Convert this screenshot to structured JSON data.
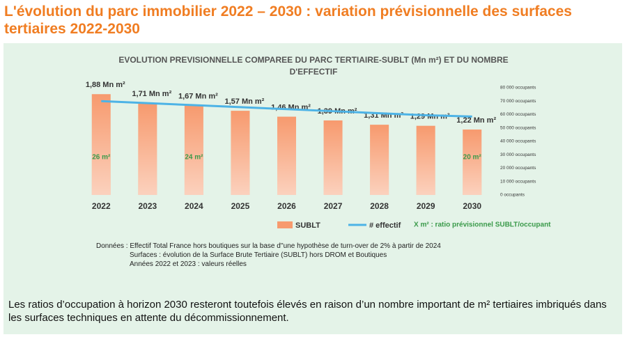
{
  "page_title": "L'évolution du parc immobilier 2022 – 2030 : variation prévisionnelle des surfaces tertiaires 2022-2030",
  "chart_data": {
    "type": "bar",
    "title": "EVOLUTION PREVISIONNELLE COMPAREE DU PARC TERTIAIRE-SUBLT (Mn m²)  ET DU NOMBRE D'EFFECTIF",
    "categories": [
      "2022",
      "2023",
      "2024",
      "2025",
      "2026",
      "2027",
      "2028",
      "2029",
      "2030"
    ],
    "series": [
      {
        "name": "SUBLT",
        "type": "bar",
        "color": "#f79a6e",
        "values": [
          1.88,
          1.71,
          1.67,
          1.57,
          1.46,
          1.39,
          1.31,
          1.29,
          1.22
        ],
        "value_labels": [
          "1,88 Mn m²",
          "1,71 Mn m²",
          "1,67 Mn m²",
          "1,57 Mn m²",
          "1,46 Mn m²",
          "1,39 Mn m²",
          "1,31 Mn m²",
          "1,29 Mn m²",
          "1,22 Mn m²"
        ]
      },
      {
        "name": "# effectif",
        "type": "line",
        "color": "#4db3e6",
        "axis": "y2",
        "values": [
          70000,
          68500,
          67000,
          65500,
          64000,
          62500,
          61000,
          59500,
          58500
        ]
      }
    ],
    "ratio_labels": [
      "26 m²",
      null,
      "24 m²",
      null,
      null,
      null,
      null,
      null,
      "20 m²"
    ],
    "ratio_color": "#3a9a4a",
    "legend_note": "X m² : ratio prévisionnel SUBLT/occupant",
    "ylim": [
      0,
      2
    ],
    "y2lim": [
      0,
      80000
    ],
    "y2ticks": [
      {
        "value": 0,
        "label": "0 occupants"
      },
      {
        "value": 10000,
        "label": "10 000 occupants"
      },
      {
        "value": 20000,
        "label": "20 000 occupants"
      },
      {
        "value": 30000,
        "label": "30 000 occupants"
      },
      {
        "value": 40000,
        "label": "40 000 occupants"
      },
      {
        "value": 50000,
        "label": "50 000 occupants"
      },
      {
        "value": 60000,
        "label": "60 000 occupants"
      },
      {
        "value": 70000,
        "label": "70 000 occupants"
      },
      {
        "value": 80000,
        "label": "80 000 occupants"
      }
    ]
  },
  "notes": [
    "Données : Effectif Total France hors boutiques sur la base d''une hypothèse de  turn-over de 2% à partir de 2024",
    "Surfaces : évolution de la Surface Brute Tertiaire (SUBLT) hors DROM et Boutiques",
    "Années 2022 et 2023 : valeurs réelles"
  ],
  "footer": "Les ratios d’occupation à horizon 2030 resteront toutefois élevés en raison d’un nombre important de m² tertiaires imbriqués dans les surfaces techniques en attente du décommissionnement."
}
